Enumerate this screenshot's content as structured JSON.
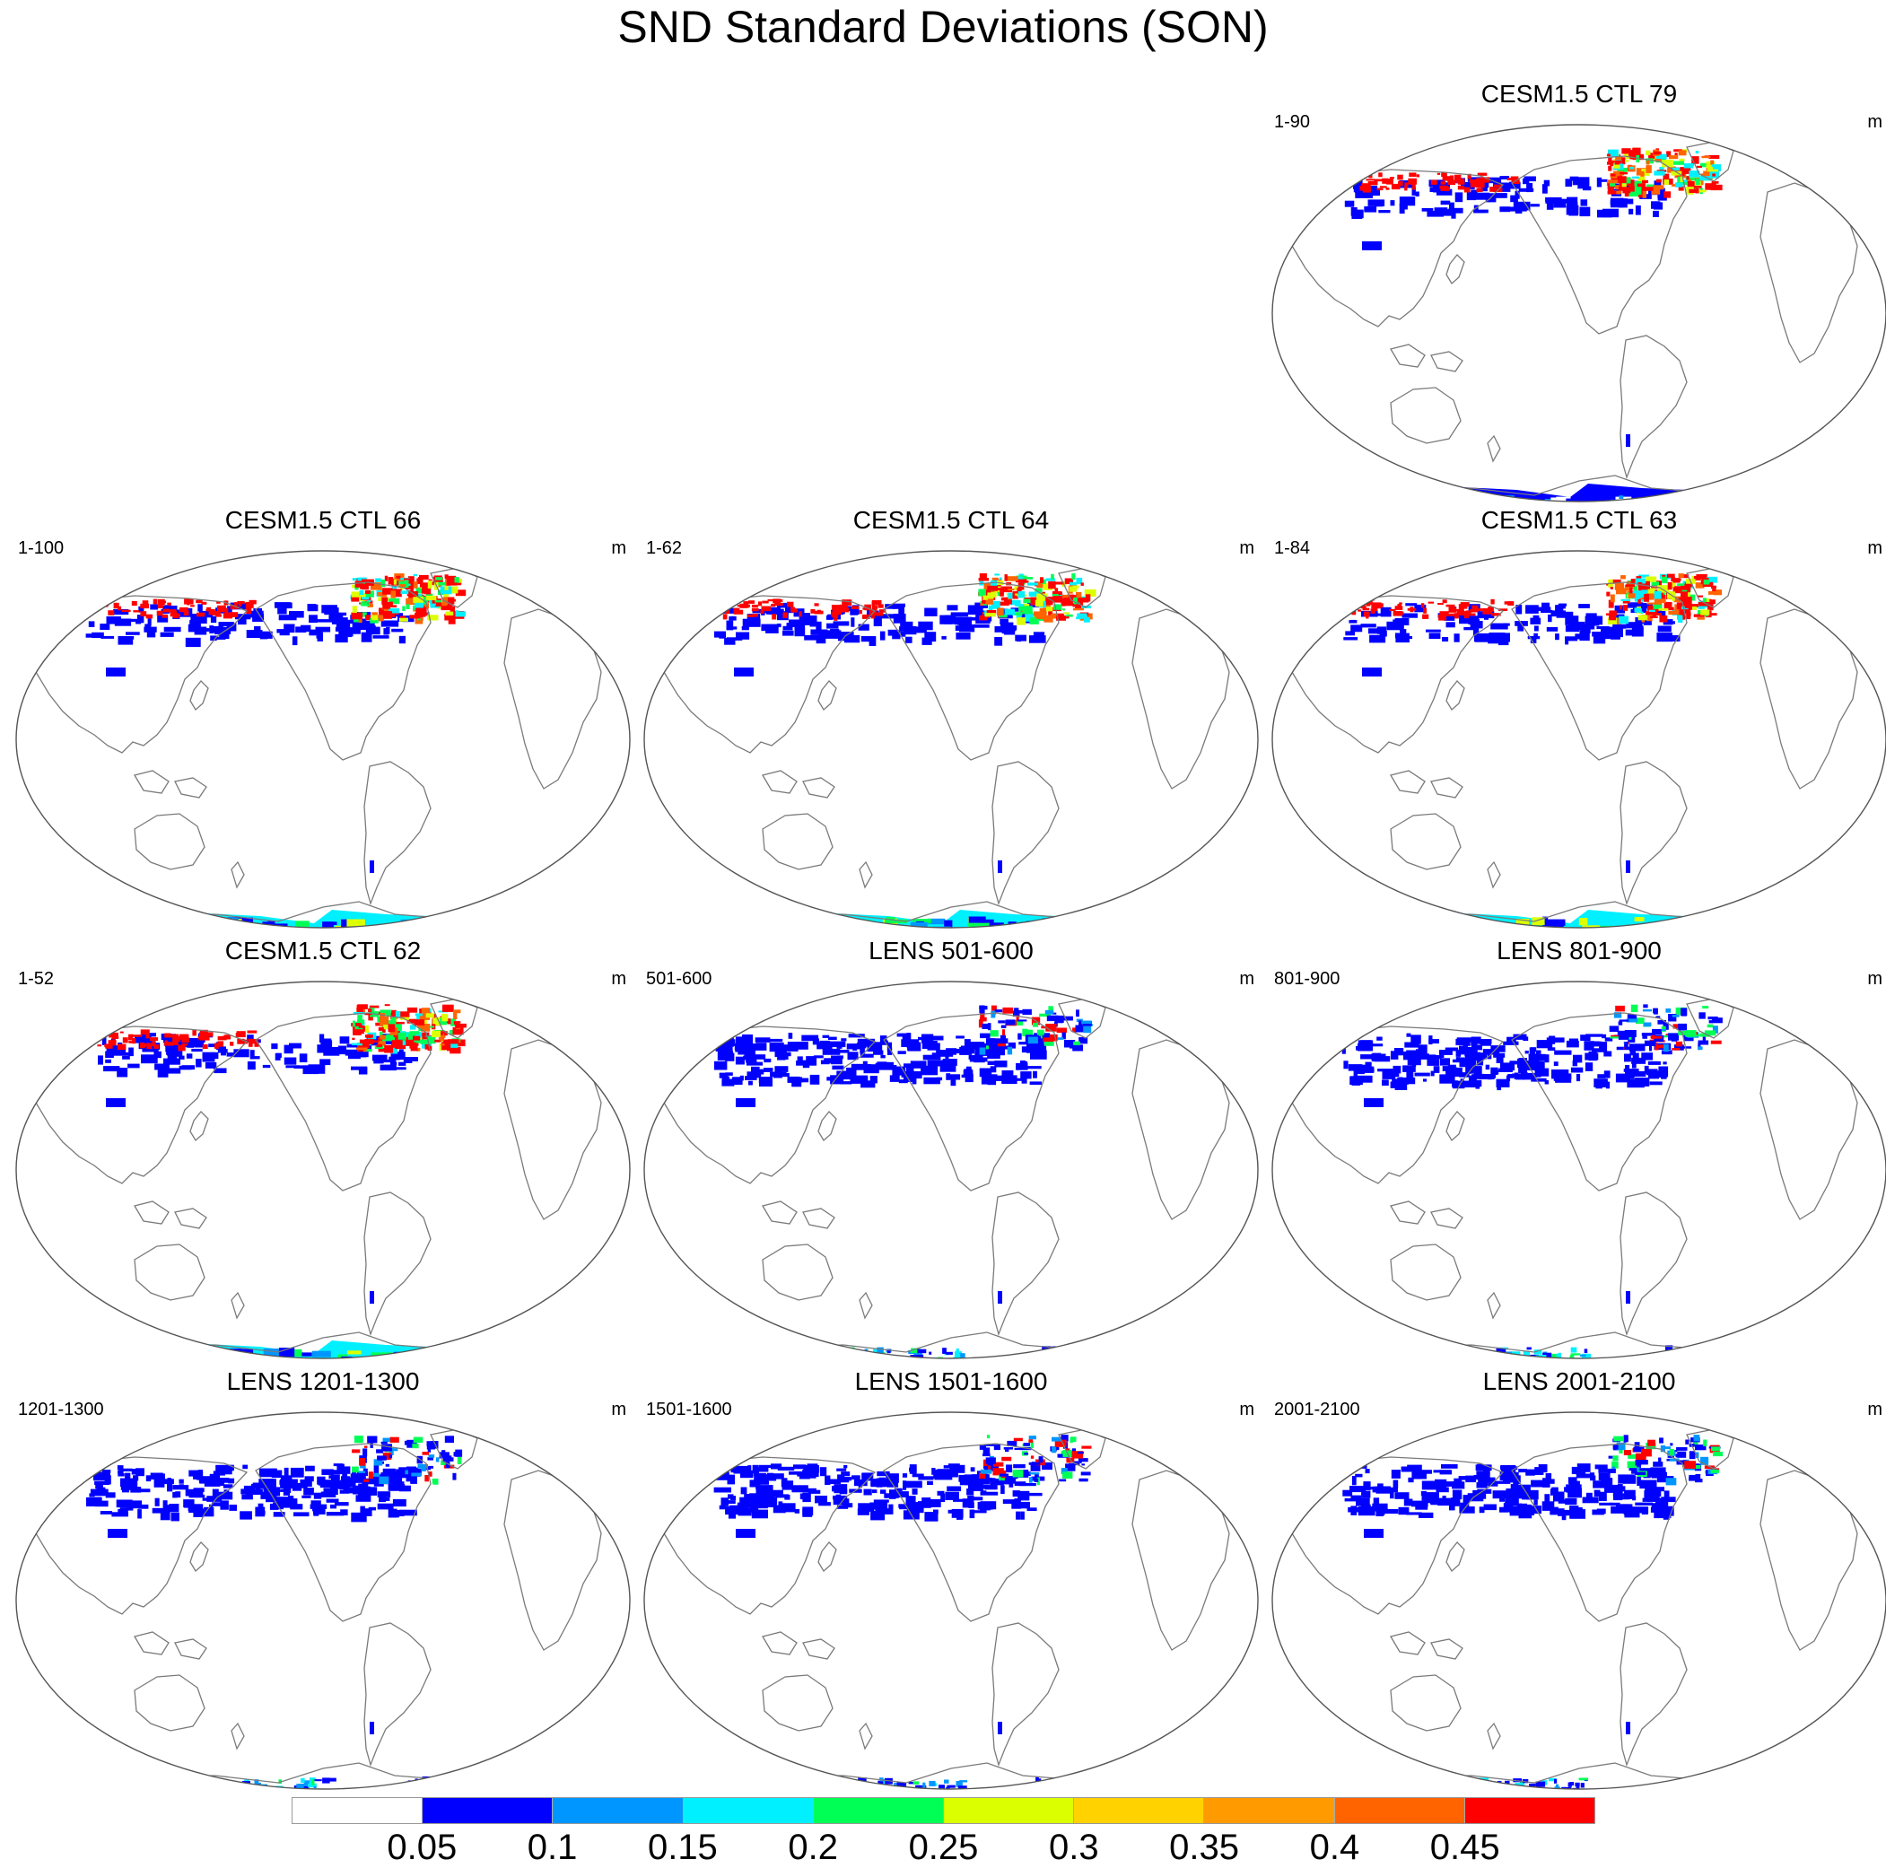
{
  "title": "SND Standard Deviations (SON)",
  "units_symbol": "m",
  "panels": [
    {
      "title": "CESM1.5 CTL 79",
      "left": "1-90",
      "right": "m",
      "pattern": "ctl_red",
      "antarctic": "blue"
    },
    {
      "title": "CESM1.5 CTL 66",
      "left": "1-100",
      "right": "m",
      "pattern": "ctl_red",
      "antarctic": "mixed"
    },
    {
      "title": "CESM1.5 CTL 64",
      "left": "1-62",
      "right": "m",
      "pattern": "ctl_red",
      "antarctic": "mixed"
    },
    {
      "title": "CESM1.5 CTL 63",
      "left": "1-84",
      "right": "m",
      "pattern": "ctl_red",
      "antarctic": "mixed"
    },
    {
      "title": "CESM1.5 CTL 62",
      "left": "1-52",
      "right": "m",
      "pattern": "ctl_red",
      "antarctic": "mixed"
    },
    {
      "title": "LENS 501-600",
      "left": "501-600",
      "right": "m",
      "pattern": "lens_blue",
      "antarctic": "coastal"
    },
    {
      "title": "LENS 801-900",
      "left": "801-900",
      "right": "m",
      "pattern": "lens_blue",
      "antarctic": "coastal"
    },
    {
      "title": "LENS 1201-1300",
      "left": "1201-1300",
      "right": "m",
      "pattern": "lens_blue",
      "antarctic": "coastal"
    },
    {
      "title": "LENS 1501-1600",
      "left": "1501-1600",
      "right": "m",
      "pattern": "lens_blue",
      "antarctic": "coastal"
    },
    {
      "title": "LENS 2001-2100",
      "left": "2001-2100",
      "right": "m",
      "pattern": "lens_blue",
      "antarctic": "coastal"
    }
  ],
  "colorbar": {
    "colors": [
      "#ffffff",
      "#0000ff",
      "#0096ff",
      "#00f0ff",
      "#00ff55",
      "#dcff00",
      "#ffd200",
      "#ff9b00",
      "#ff6400",
      "#ff0000"
    ],
    "labels": [
      "0.05",
      "0.1",
      "0.15",
      "0.2",
      "0.25",
      "0.3",
      "0.35",
      "0.4",
      "0.45"
    ]
  },
  "chart_data": {
    "type": "heatmap",
    "title": "SND Standard Deviations (SON)",
    "variable": "SND",
    "season": "SON",
    "units": "m",
    "contour_levels": [
      0.05,
      0.1,
      0.15,
      0.2,
      0.25,
      0.3,
      0.35,
      0.4,
      0.45
    ],
    "panels": [
      {
        "name": "CESM1.5 CTL 79",
        "years": "1-90"
      },
      {
        "name": "CESM1.5 CTL 66",
        "years": "1-100"
      },
      {
        "name": "CESM1.5 CTL 64",
        "years": "1-62"
      },
      {
        "name": "CESM1.5 CTL 63",
        "years": "1-84"
      },
      {
        "name": "CESM1.5 CTL 62",
        "years": "1-52"
      },
      {
        "name": "LENS 501-600",
        "years": "501-600"
      },
      {
        "name": "LENS 801-900",
        "years": "801-900"
      },
      {
        "name": "LENS 1201-1300",
        "years": "1201-1300"
      },
      {
        "name": "LENS 1501-1600",
        "years": "1501-1600"
      },
      {
        "name": "LENS 2001-2100",
        "years": "2001-2100"
      }
    ]
  }
}
